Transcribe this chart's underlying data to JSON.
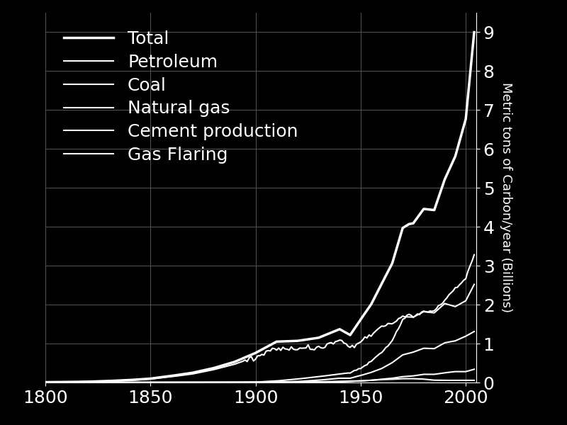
{
  "title": "",
  "ylabel": "Metric tons of Carbon/year (Billions)",
  "xlabel": "",
  "xlim": [
    1800,
    2005
  ],
  "ylim": [
    0,
    9.5
  ],
  "yticks": [
    0,
    1,
    2,
    3,
    4,
    5,
    6,
    7,
    8,
    9
  ],
  "xticks": [
    1800,
    1850,
    1900,
    1950,
    2000
  ],
  "bg_color": "#000000",
  "line_color": "#ffffff",
  "grid_color": "#555555",
  "legend_labels": [
    "Total",
    "Petroleum",
    "Coal",
    "Natural gas",
    "Cement production",
    "Gas Flaring"
  ],
  "legend_linewidths": [
    2.5,
    1.5,
    1.5,
    1.5,
    1.5,
    1.5
  ],
  "font_size": 18
}
